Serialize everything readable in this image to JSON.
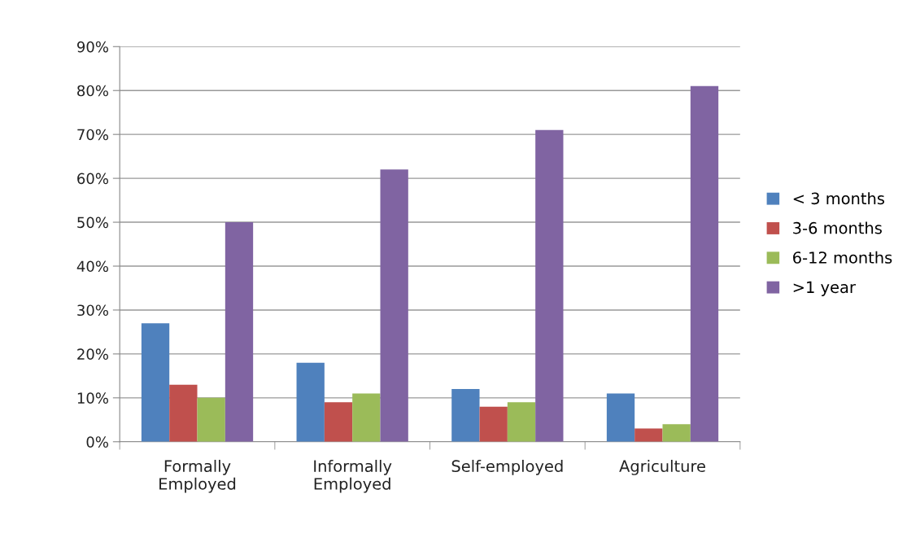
{
  "chart_data": {
    "type": "bar",
    "categories": [
      "Formally\nEmployed",
      "Informally\nEmployed",
      "Self-employed",
      "Agriculture"
    ],
    "series": [
      {
        "name": "< 3 months",
        "color": "#4f81bd",
        "values": [
          27,
          18,
          12,
          11
        ]
      },
      {
        "name": "3-6 months",
        "color": "#c0504d",
        "values": [
          13,
          9,
          8,
          3
        ]
      },
      {
        "name": "6-12 months",
        "color": "#9bbb59",
        "values": [
          10,
          11,
          9,
          4
        ]
      },
      {
        "name": ">1 year",
        "color": "#8064a2",
        "values": [
          50,
          62,
          71,
          81
        ]
      }
    ],
    "ylim": [
      0,
      90
    ],
    "yticks": [
      {
        "value": 0,
        "label": "0%"
      },
      {
        "value": 10,
        "label": "10%"
      },
      {
        "value": 20,
        "label": "20%"
      },
      {
        "value": 30,
        "label": "30%"
      },
      {
        "value": 40,
        "label": "40%"
      },
      {
        "value": 50,
        "label": "50%"
      },
      {
        "value": 60,
        "label": "60%"
      },
      {
        "value": 70,
        "label": "70%"
      },
      {
        "value": 80,
        "label": "80%"
      },
      {
        "value": 90,
        "label": "90%"
      }
    ],
    "grid": "y",
    "legend": "right"
  }
}
